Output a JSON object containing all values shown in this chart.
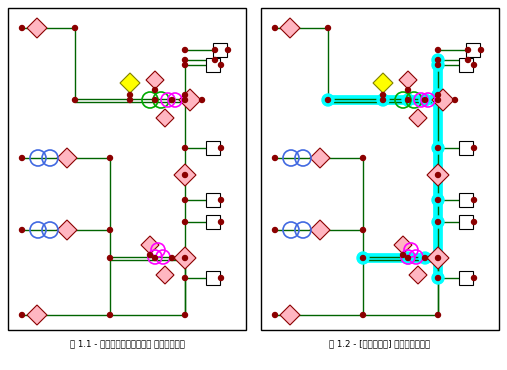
{
  "fig_width": 5.07,
  "fig_height": 3.7,
  "dpi": 100,
  "bg_color": "#ffffff",
  "line_color": "#006400",
  "node_color": "#8B0000",
  "diamond_fill": "#FFB6C1",
  "diamond_edge": "#8B0000",
  "yellow_diamond_fill": "#FFFF00",
  "yellow_diamond_edge": "#808000",
  "square_fill": "#ffffff",
  "square_edge": "#000000",
  "blue_circle_edge": "#4169E1",
  "pink_circle_edge": "#FF00FF",
  "green_circle_edge": "#00AA00",
  "cyan_color": "#00FFFF",
  "caption_left": "図 1.1 - 当初のスケマティック ダイアグラム",
  "caption_right": "図 1.2 - [ループ解析] トレースの結果"
}
